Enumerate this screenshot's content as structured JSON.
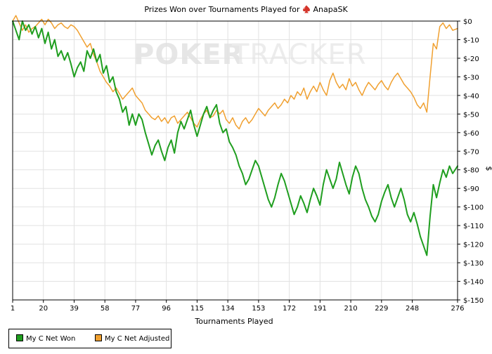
{
  "chart_data": {
    "type": "line",
    "title_prefix": "Prizes Won over Tournaments Played for",
    "player_name": "AnapaSK",
    "watermark": {
      "left": "POKER",
      "right": "TRACKER"
    },
    "xlabel": "Tournaments Played",
    "ylabel": "$",
    "x_ticks": [
      1,
      20,
      39,
      58,
      77,
      96,
      115,
      134,
      153,
      172,
      191,
      210,
      229,
      248,
      276
    ],
    "x_range": [
      1,
      276
    ],
    "y_ticks": [
      0,
      -10,
      -20,
      -30,
      -40,
      -50,
      -60,
      -70,
      -80,
      -90,
      -100,
      -110,
      -120,
      -130,
      -140,
      -150
    ],
    "y_tick_labels": [
      "$0",
      "$-10",
      "$-20",
      "$-30",
      "$-40",
      "$-50",
      "$-60",
      "$-70",
      "$-80",
      "$-90",
      "$-100",
      "$-110",
      "$-120",
      "$-130",
      "$-140",
      "$-150"
    ],
    "y_range": [
      -150,
      0
    ],
    "legend_position": "bottom-left",
    "series": [
      {
        "name": "My C Net Won",
        "color": "#1f9e1f",
        "points": [
          [
            1,
            0
          ],
          [
            3,
            -5
          ],
          [
            5,
            -10
          ],
          [
            7,
            0
          ],
          [
            9,
            -5
          ],
          [
            11,
            -2
          ],
          [
            13,
            -7
          ],
          [
            15,
            -3
          ],
          [
            17,
            -9
          ],
          [
            19,
            -4
          ],
          [
            21,
            -12
          ],
          [
            23,
            -6
          ],
          [
            25,
            -15
          ],
          [
            27,
            -10
          ],
          [
            29,
            -19
          ],
          [
            31,
            -16
          ],
          [
            33,
            -21
          ],
          [
            35,
            -17
          ],
          [
            37,
            -23
          ],
          [
            39,
            -30
          ],
          [
            41,
            -25
          ],
          [
            43,
            -22
          ],
          [
            45,
            -27
          ],
          [
            47,
            -16
          ],
          [
            49,
            -20
          ],
          [
            51,
            -15
          ],
          [
            53,
            -22
          ],
          [
            55,
            -18
          ],
          [
            57,
            -28
          ],
          [
            59,
            -24
          ],
          [
            61,
            -33
          ],
          [
            63,
            -30
          ],
          [
            65,
            -38
          ],
          [
            67,
            -42
          ],
          [
            69,
            -49
          ],
          [
            71,
            -46
          ],
          [
            73,
            -56
          ],
          [
            75,
            -50
          ],
          [
            77,
            -56
          ],
          [
            79,
            -50
          ],
          [
            81,
            -53
          ],
          [
            83,
            -60
          ],
          [
            85,
            -66
          ],
          [
            87,
            -72
          ],
          [
            89,
            -67
          ],
          [
            91,
            -64
          ],
          [
            93,
            -70
          ],
          [
            95,
            -75
          ],
          [
            97,
            -68
          ],
          [
            99,
            -64
          ],
          [
            101,
            -71
          ],
          [
            103,
            -60
          ],
          [
            105,
            -54
          ],
          [
            107,
            -58
          ],
          [
            109,
            -53
          ],
          [
            111,
            -48
          ],
          [
            113,
            -56
          ],
          [
            115,
            -62
          ],
          [
            117,
            -56
          ],
          [
            119,
            -50
          ],
          [
            121,
            -46
          ],
          [
            123,
            -52
          ],
          [
            125,
            -48
          ],
          [
            127,
            -45
          ],
          [
            129,
            -55
          ],
          [
            131,
            -60
          ],
          [
            133,
            -58
          ],
          [
            135,
            -65
          ],
          [
            137,
            -68
          ],
          [
            139,
            -72
          ],
          [
            141,
            -78
          ],
          [
            143,
            -82
          ],
          [
            145,
            -88
          ],
          [
            147,
            -85
          ],
          [
            149,
            -80
          ],
          [
            151,
            -75
          ],
          [
            153,
            -78
          ],
          [
            155,
            -84
          ],
          [
            157,
            -90
          ],
          [
            159,
            -96
          ],
          [
            161,
            -100
          ],
          [
            163,
            -95
          ],
          [
            165,
            -88
          ],
          [
            167,
            -82
          ],
          [
            169,
            -86
          ],
          [
            171,
            -92
          ],
          [
            173,
            -98
          ],
          [
            175,
            -104
          ],
          [
            177,
            -100
          ],
          [
            179,
            -94
          ],
          [
            181,
            -98
          ],
          [
            183,
            -103
          ],
          [
            185,
            -96
          ],
          [
            187,
            -90
          ],
          [
            189,
            -94
          ],
          [
            191,
            -99
          ],
          [
            193,
            -88
          ],
          [
            195,
            -80
          ],
          [
            197,
            -85
          ],
          [
            199,
            -90
          ],
          [
            201,
            -85
          ],
          [
            203,
            -76
          ],
          [
            205,
            -82
          ],
          [
            207,
            -88
          ],
          [
            209,
            -93
          ],
          [
            211,
            -84
          ],
          [
            213,
            -78
          ],
          [
            215,
            -82
          ],
          [
            217,
            -90
          ],
          [
            219,
            -96
          ],
          [
            221,
            -100
          ],
          [
            223,
            -105
          ],
          [
            225,
            -108
          ],
          [
            227,
            -104
          ],
          [
            229,
            -97
          ],
          [
            231,
            -92
          ],
          [
            233,
            -88
          ],
          [
            235,
            -95
          ],
          [
            237,
            -100
          ],
          [
            239,
            -95
          ],
          [
            241,
            -90
          ],
          [
            243,
            -96
          ],
          [
            245,
            -104
          ],
          [
            247,
            -108
          ],
          [
            249,
            -103
          ],
          [
            251,
            -109
          ],
          [
            253,
            -116
          ],
          [
            255,
            -121
          ],
          [
            257,
            -126
          ],
          [
            259,
            -105
          ],
          [
            261,
            -88
          ],
          [
            263,
            -95
          ],
          [
            265,
            -87
          ],
          [
            267,
            -80
          ],
          [
            269,
            -84
          ],
          [
            271,
            -78
          ],
          [
            273,
            -82
          ],
          [
            276,
            -78
          ]
        ]
      },
      {
        "name": "My C Net Adjusted",
        "color": "#f0a030",
        "points": [
          [
            1,
            0
          ],
          [
            3,
            3
          ],
          [
            5,
            -1
          ],
          [
            7,
            -5
          ],
          [
            9,
            -2
          ],
          [
            11,
            -6
          ],
          [
            13,
            -4
          ],
          [
            15,
            -3
          ],
          [
            17,
            -1
          ],
          [
            19,
            1
          ],
          [
            21,
            -2
          ],
          [
            23,
            1
          ],
          [
            25,
            -1
          ],
          [
            27,
            -4
          ],
          [
            29,
            -2
          ],
          [
            31,
            -1
          ],
          [
            33,
            -3
          ],
          [
            35,
            -4
          ],
          [
            37,
            -2
          ],
          [
            39,
            -3
          ],
          [
            41,
            -5
          ],
          [
            43,
            -8
          ],
          [
            45,
            -11
          ],
          [
            47,
            -14
          ],
          [
            49,
            -12
          ],
          [
            51,
            -18
          ],
          [
            53,
            -22
          ],
          [
            55,
            -27
          ],
          [
            57,
            -30
          ],
          [
            59,
            -33
          ],
          [
            61,
            -35
          ],
          [
            63,
            -38
          ],
          [
            65,
            -36
          ],
          [
            67,
            -39
          ],
          [
            69,
            -42
          ],
          [
            71,
            -40
          ],
          [
            73,
            -38
          ],
          [
            75,
            -36
          ],
          [
            77,
            -40
          ],
          [
            79,
            -42
          ],
          [
            81,
            -44
          ],
          [
            83,
            -48
          ],
          [
            85,
            -50
          ],
          [
            87,
            -52
          ],
          [
            89,
            -53
          ],
          [
            91,
            -51
          ],
          [
            93,
            -54
          ],
          [
            95,
            -52
          ],
          [
            97,
            -55
          ],
          [
            99,
            -52
          ],
          [
            101,
            -51
          ],
          [
            103,
            -55
          ],
          [
            105,
            -53
          ],
          [
            107,
            -51
          ],
          [
            109,
            -49
          ],
          [
            111,
            -52
          ],
          [
            113,
            -55
          ],
          [
            115,
            -57
          ],
          [
            117,
            -53
          ],
          [
            119,
            -50
          ],
          [
            121,
            -48
          ],
          [
            123,
            -52
          ],
          [
            125,
            -51
          ],
          [
            127,
            -48
          ],
          [
            129,
            -50
          ],
          [
            131,
            -48
          ],
          [
            133,
            -53
          ],
          [
            135,
            -55
          ],
          [
            137,
            -52
          ],
          [
            139,
            -56
          ],
          [
            141,
            -58
          ],
          [
            143,
            -54
          ],
          [
            145,
            -52
          ],
          [
            147,
            -55
          ],
          [
            149,
            -53
          ],
          [
            151,
            -50
          ],
          [
            153,
            -47
          ],
          [
            155,
            -49
          ],
          [
            157,
            -51
          ],
          [
            159,
            -48
          ],
          [
            161,
            -46
          ],
          [
            163,
            -44
          ],
          [
            165,
            -47
          ],
          [
            167,
            -45
          ],
          [
            169,
            -42
          ],
          [
            171,
            -44
          ],
          [
            173,
            -40
          ],
          [
            175,
            -42
          ],
          [
            177,
            -38
          ],
          [
            179,
            -40
          ],
          [
            181,
            -36
          ],
          [
            183,
            -42
          ],
          [
            185,
            -38
          ],
          [
            187,
            -35
          ],
          [
            189,
            -38
          ],
          [
            191,
            -33
          ],
          [
            193,
            -37
          ],
          [
            195,
            -40
          ],
          [
            197,
            -32
          ],
          [
            199,
            -28
          ],
          [
            201,
            -33
          ],
          [
            203,
            -36
          ],
          [
            205,
            -34
          ],
          [
            207,
            -37
          ],
          [
            209,
            -31
          ],
          [
            211,
            -35
          ],
          [
            213,
            -33
          ],
          [
            215,
            -37
          ],
          [
            217,
            -40
          ],
          [
            219,
            -36
          ],
          [
            221,
            -33
          ],
          [
            223,
            -35
          ],
          [
            225,
            -37
          ],
          [
            227,
            -34
          ],
          [
            229,
            -32
          ],
          [
            231,
            -35
          ],
          [
            233,
            -37
          ],
          [
            235,
            -33
          ],
          [
            237,
            -30
          ],
          [
            239,
            -28
          ],
          [
            241,
            -31
          ],
          [
            243,
            -34
          ],
          [
            245,
            -36
          ],
          [
            247,
            -38
          ],
          [
            249,
            -41
          ],
          [
            251,
            -45
          ],
          [
            253,
            -47
          ],
          [
            255,
            -44
          ],
          [
            257,
            -49
          ],
          [
            259,
            -30
          ],
          [
            261,
            -12
          ],
          [
            263,
            -15
          ],
          [
            265,
            -3
          ],
          [
            267,
            -1
          ],
          [
            269,
            -4
          ],
          [
            271,
            -2
          ],
          [
            273,
            -5
          ],
          [
            276,
            -4
          ]
        ]
      }
    ]
  }
}
